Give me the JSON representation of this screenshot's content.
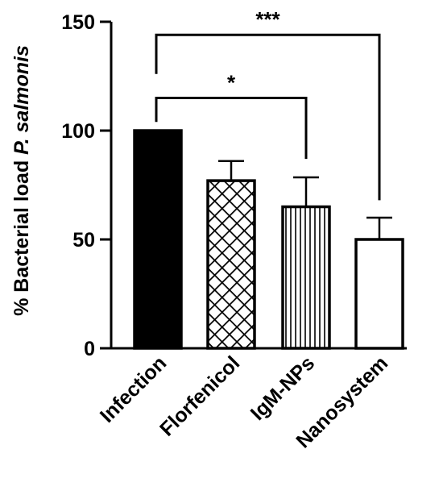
{
  "chart_data": {
    "type": "bar",
    "categories": [
      "Infection",
      "Florfenicol",
      "IgM-NPs",
      "Nanosystem"
    ],
    "values": [
      100,
      77,
      65,
      50
    ],
    "errors": [
      0,
      9,
      13.5,
      10
    ],
    "fills": [
      "solid",
      "crosshatch",
      "vertical-lines",
      "empty"
    ],
    "ylabel_prefix": "% Bacterial load ",
    "ylabel_italic": "P. salmonis",
    "ylim": [
      0,
      150
    ],
    "yticks": [
      0,
      50,
      100,
      150
    ],
    "grid": false,
    "significance": [
      {
        "from": "Infection",
        "to": "IgM-NPs",
        "label": "*"
      },
      {
        "from": "Infection",
        "to": "Nanosystem",
        "label": "***"
      }
    ],
    "colors": {
      "ink": "#000000",
      "background": "#ffffff"
    }
  }
}
